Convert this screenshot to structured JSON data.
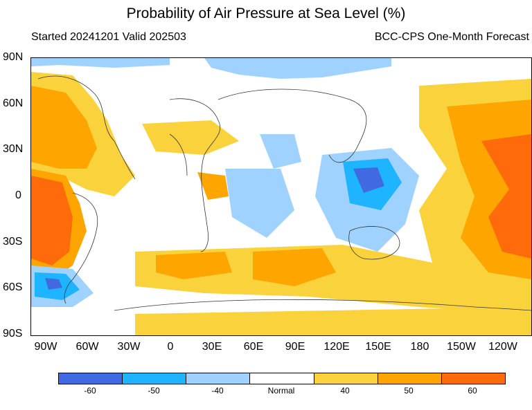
{
  "title": "Probability of Air Pressure at Sea Level (%)",
  "subtitle_left": "Started 20241201  Valid 202503",
  "subtitle_right": "BCC-CPS One-Month Forecast",
  "lat_labels": [
    "90N",
    "60N",
    "30N",
    "0",
    "30S",
    "60S",
    "90S"
  ],
  "lon_labels": [
    "90W",
    "60W",
    "30W",
    "0",
    "30E",
    "60E",
    "90E",
    "120E",
    "150E",
    "180",
    "150W",
    "120W"
  ],
  "colorbar": {
    "colors": [
      "#4169e1",
      "#1eb4ff",
      "#a0d2ff",
      "#ffffff",
      "#fad23c",
      "#ffa500",
      "#ff6a0a"
    ],
    "labels": [
      "-60",
      "-50",
      "-40",
      "Normal",
      "40",
      "50",
      "60"
    ]
  }
}
